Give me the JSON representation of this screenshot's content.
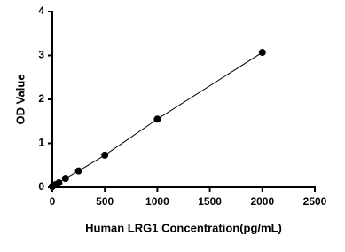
{
  "chart_data": {
    "type": "line",
    "x_label": "Human LRG1 Concentration(pg/mL)",
    "y_label": "OD Value",
    "x": [
      0,
      31.25,
      62.5,
      125,
      250,
      500,
      1000,
      2000
    ],
    "series": [
      {
        "color": "#000000",
        "values": [
          0.02,
          0.06,
          0.1,
          0.2,
          0.37,
          0.73,
          1.55,
          3.07
        ]
      }
    ],
    "xlim": [
      0,
      2500
    ],
    "xticks": [
      0,
      500,
      1000,
      1500,
      2000,
      2500
    ],
    "ylim": [
      0,
      4
    ],
    "yticks": [
      0,
      1,
      2,
      3,
      4
    ]
  }
}
